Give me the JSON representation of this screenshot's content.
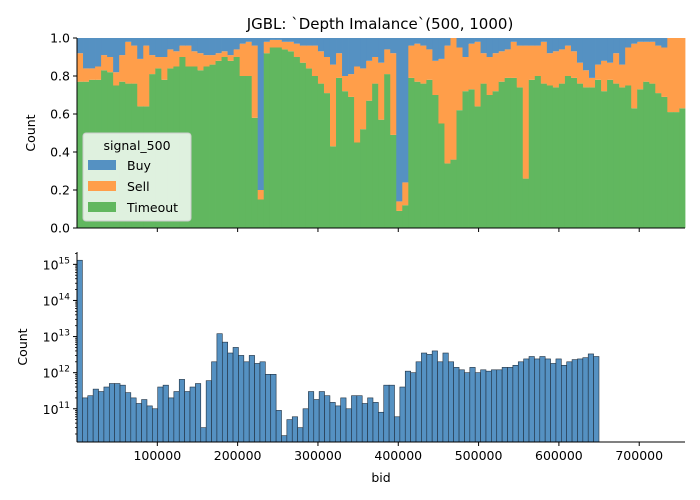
{
  "figure_title": "JGBL: `Depth Imalance`(500, 1000)",
  "colors": {
    "buy": "#5591c2",
    "sell": "#ff9e4a",
    "timeout": "#61b75f",
    "hist_fill": "#5591c2",
    "hist_edge": "#1f2f3f"
  },
  "chart_data": [
    {
      "type": "bar",
      "stacked": true,
      "normalized": true,
      "title": "JGBL: `Depth Imalance`(500, 1000)",
      "xlabel": "",
      "ylabel": "Count",
      "xlim": [
        0,
        757000
      ],
      "ylim": [
        0,
        1
      ],
      "yticks": [
        0.0,
        0.2,
        0.4,
        0.6,
        0.8,
        1.0
      ],
      "ytick_labels": [
        "0.0",
        "0.2",
        "0.4",
        "0.6",
        "0.8",
        "1.0"
      ],
      "bin_width": 7500,
      "legend": {
        "title": "signal_500",
        "location": "center-left",
        "entries": [
          "Buy",
          "Sell",
          "Timeout"
        ]
      },
      "series_order_bottom_to_top": [
        "Timeout",
        "Sell",
        "Buy"
      ],
      "timeout": [
        0.77,
        0.77,
        0.78,
        0.78,
        0.83,
        0.82,
        0.75,
        0.77,
        0.76,
        0.76,
        0.64,
        0.64,
        0.81,
        0.84,
        0.78,
        0.84,
        0.85,
        0.9,
        0.85,
        0.85,
        0.83,
        0.85,
        0.86,
        0.88,
        0.9,
        0.88,
        0.9,
        0.8,
        0.8,
        0.58,
        0.15,
        0.92,
        0.95,
        0.95,
        0.94,
        0.93,
        0.9,
        0.87,
        0.84,
        0.8,
        0.76,
        0.71,
        0.43,
        0.79,
        0.72,
        0.69,
        0.45,
        0.52,
        0.67,
        0.76,
        0.57,
        0.81,
        0.49,
        0.09,
        0.12,
        0.79,
        0.77,
        0.76,
        0.78,
        0.7,
        0.55,
        0.34,
        0.36,
        0.62,
        0.72,
        0.73,
        0.64,
        0.76,
        0.7,
        0.72,
        0.77,
        0.79,
        0.79,
        0.74,
        0.26,
        0.78,
        0.8,
        0.76,
        0.75,
        0.74,
        0.76,
        0.8,
        0.79,
        0.76,
        0.74,
        0.74,
        0.78,
        0.72,
        0.78,
        0.76,
        0.74,
        0.75,
        0.63,
        0.73,
        0.77,
        0.76,
        0.71,
        0.69,
        0.61,
        0.61,
        0.63,
        0.77,
        0.8,
        0.69,
        0.64,
        0.66,
        0.7,
        0.72,
        0.7,
        0.69,
        0.74,
        0.72,
        0.64
      ],
      "sell": [
        0.15,
        0.07,
        0.06,
        0.07,
        0.08,
        0.08,
        0.07,
        0.14,
        0.22,
        0.2,
        0.25,
        0.32,
        0.1,
        0.06,
        0.12,
        0.1,
        0.08,
        0.06,
        0.11,
        0.08,
        0.09,
        0.06,
        0.05,
        0.04,
        0.03,
        0.03,
        0.04,
        0.17,
        0.18,
        0.38,
        0.05,
        0.06,
        0.04,
        0.04,
        0.04,
        0.05,
        0.07,
        0.09,
        0.12,
        0.16,
        0.17,
        0.19,
        0.43,
        0.13,
        0.08,
        0.12,
        0.4,
        0.32,
        0.21,
        0.14,
        0.3,
        0.13,
        0.43,
        0.05,
        0.12,
        0.17,
        0.2,
        0.2,
        0.16,
        0.18,
        0.34,
        0.62,
        0.64,
        0.33,
        0.18,
        0.24,
        0.34,
        0.16,
        0.2,
        0.2,
        0.16,
        0.15,
        0.19,
        0.22,
        0.7,
        0.18,
        0.16,
        0.22,
        0.17,
        0.19,
        0.18,
        0.16,
        0.14,
        0.11,
        0.09,
        0.05,
        0.08,
        0.16,
        0.09,
        0.16,
        0.12,
        0.2,
        0.34,
        0.25,
        0.21,
        0.22,
        0.25,
        0.26,
        0.39,
        0.39,
        0.37,
        0.22,
        0.19,
        0.31,
        0.35,
        0.29,
        0.28,
        0.25,
        0.27,
        0.28,
        0.22,
        0.26,
        0.29
      ],
      "buy": [
        0.08,
        0.16,
        0.16,
        0.15,
        0.09,
        0.1,
        0.18,
        0.09,
        0.02,
        0.04,
        0.11,
        0.04,
        0.09,
        0.1,
        0.1,
        0.06,
        0.07,
        0.04,
        0.04,
        0.07,
        0.08,
        0.09,
        0.09,
        0.08,
        0.07,
        0.09,
        0.06,
        0.03,
        0.02,
        0.04,
        0.8,
        0.02,
        0.01,
        0.01,
        0.02,
        0.02,
        0.03,
        0.04,
        0.04,
        0.04,
        0.07,
        0.1,
        0.14,
        0.08,
        0.2,
        0.19,
        0.15,
        0.16,
        0.12,
        0.1,
        0.13,
        0.06,
        0.08,
        0.86,
        0.76,
        0.04,
        0.03,
        0.04,
        0.06,
        0.12,
        0.11,
        0.04,
        0.0,
        0.05,
        0.1,
        0.03,
        0.02,
        0.08,
        0.1,
        0.08,
        0.07,
        0.06,
        0.02,
        0.04,
        0.04,
        0.04,
        0.04,
        0.02,
        0.08,
        0.07,
        0.06,
        0.04,
        0.07,
        0.13,
        0.17,
        0.21,
        0.14,
        0.12,
        0.13,
        0.08,
        0.14,
        0.05,
        0.03,
        0.02,
        0.02,
        0.02,
        0.04,
        0.05,
        0.0,
        0.0,
        0.0,
        0.01,
        0.01,
        0.0,
        0.01,
        0.05,
        0.02,
        0.03,
        0.03,
        0.03,
        0.04,
        0.02,
        0.07
      ]
    },
    {
      "type": "bar",
      "histogram": true,
      "xlabel": "bid",
      "ylabel": "Count",
      "xlim": [
        0,
        757000
      ],
      "yscale": "log",
      "ylim": [
        12000000000.0,
        2200000000000000.0
      ],
      "yticks": [
        100000000000.0,
        1000000000000.0,
        10000000000000.0,
        100000000000000.0,
        1000000000000000.0
      ],
      "ytick_labels": [
        [
          "10",
          "11"
        ],
        [
          "10",
          "12"
        ],
        [
          "10",
          "13"
        ],
        [
          "10",
          "14"
        ],
        [
          "10",
          "15"
        ]
      ],
      "xticks": [
        100000,
        200000,
        300000,
        400000,
        500000,
        600000,
        700000
      ],
      "xtick_labels": [
        "100000",
        "200000",
        "300000",
        "400000",
        "500000",
        "600000",
        "700000"
      ],
      "bin_width": 6700,
      "values": [
        1300000000000000.0,
        200000000000.0,
        230000000000.0,
        350000000000.0,
        300000000000.0,
        400000000000.0,
        500000000000.0,
        500000000000.0,
        450000000000.0,
        280000000000.0,
        200000000000.0,
        140000000000.0,
        180000000000.0,
        120000000000.0,
        100000000000.0,
        400000000000.0,
        450000000000.0,
        200000000000.0,
        300000000000.0,
        650000000000.0,
        300000000000.0,
        400000000000.0,
        500000000000.0,
        30000000000.0,
        600000000000.0,
        2000000000000.0,
        12000000000000.0,
        7000000000000.0,
        3500000000000.0,
        5000000000000.0,
        3000000000000.0,
        2000000000000.0,
        3000000000000.0,
        1800000000000.0,
        2000000000000.0,
        900000000000.0,
        900000000000.0,
        90000000000.0,
        18000000000.0,
        50000000000.0,
        60000000000.0,
        30000000000.0,
        100000000000.0,
        300000000000.0,
        180000000000.0,
        300000000000.0,
        230000000000.0,
        150000000000.0,
        120000000000.0,
        200000000000.0,
        100000000000.0,
        230000000000.0,
        230000000000.0,
        140000000000.0,
        200000000000.0,
        150000000000.0,
        80000000000.0,
        450000000000.0,
        450000000000.0,
        60000000000.0,
        400000000000.0,
        1100000000000.0,
        1000000000000.0,
        2000000000000.0,
        3500000000000.0,
        3200000000000.0,
        4000000000000.0,
        2000000000000.0,
        3500000000000.0,
        2000000000000.0,
        1400000000000.0,
        1200000000000.0,
        1000000000000.0,
        1400000000000.0,
        1000000000000.0,
        1200000000000.0,
        1100000000000.0,
        1200000000000.0,
        1200000000000.0,
        1400000000000.0,
        1400000000000.0,
        1600000000000.0,
        2000000000000.0,
        2400000000000.0,
        2800000000000.0,
        2400000000000.0,
        2800000000000.0,
        2400000000000.0,
        1800000000000.0,
        2400000000000.0,
        1600000000000.0,
        2000000000000.0,
        2300000000000.0,
        2400000000000.0,
        2600000000000.0,
        3300000000000.0,
        2800000000000.0
      ]
    }
  ]
}
